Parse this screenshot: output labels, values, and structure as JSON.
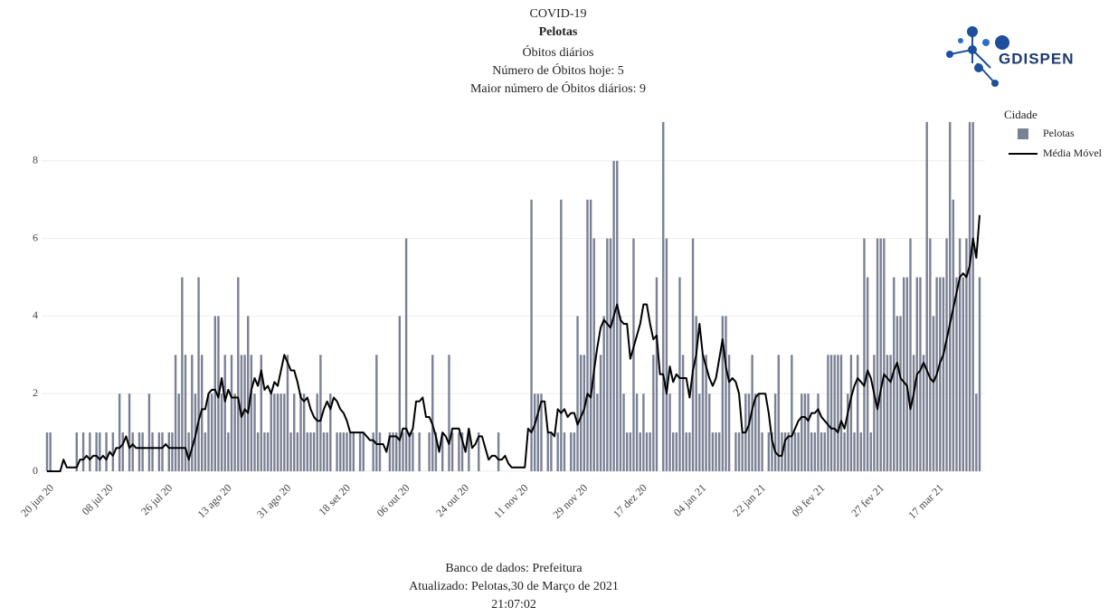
{
  "chart_data": {
    "type": "bar",
    "title": "COVID-19",
    "subtitle": "Pelotas",
    "annotations": [
      "Óbitos diários",
      "Número de Óbitos hoje: 5",
      "Maior número de Óbitos diários: 9"
    ],
    "footer": [
      "Banco de dados: Prefeitura",
      "Atualizado: Pelotas,30 de Março de 2021",
      "21:07:02"
    ],
    "legend_title": "Cidade",
    "legend_position": "top-right",
    "grid": true,
    "ylim": [
      0,
      9.3
    ],
    "yticks": [
      0,
      2,
      4,
      6,
      8
    ],
    "categories": [
      "20 jun 20",
      null,
      null,
      null,
      null,
      null,
      null,
      null,
      null,
      null,
      null,
      null,
      null,
      null,
      null,
      null,
      null,
      null,
      "08 jul 20",
      null,
      null,
      null,
      null,
      null,
      null,
      null,
      null,
      null,
      null,
      null,
      null,
      null,
      null,
      null,
      null,
      null,
      "26 jul 20",
      null,
      null,
      null,
      null,
      null,
      null,
      null,
      null,
      null,
      null,
      null,
      null,
      null,
      null,
      null,
      null,
      null,
      "13 ago 20",
      null,
      null,
      null,
      null,
      null,
      null,
      null,
      null,
      null,
      null,
      null,
      null,
      null,
      null,
      null,
      null,
      null,
      "31 ago 20",
      null,
      null,
      null,
      null,
      null,
      null,
      null,
      null,
      null,
      null,
      null,
      null,
      null,
      null,
      null,
      null,
      null,
      "18 set 20",
      null,
      null,
      null,
      null,
      null,
      null,
      null,
      null,
      null,
      null,
      null,
      null,
      null,
      null,
      null,
      null,
      null,
      "06 out 20",
      null,
      null,
      null,
      null,
      null,
      null,
      null,
      null,
      null,
      null,
      null,
      null,
      null,
      null,
      null,
      null,
      null,
      "24 out 20",
      null,
      null,
      null,
      null,
      null,
      null,
      null,
      null,
      null,
      null,
      null,
      null,
      null,
      null,
      null,
      null,
      null,
      "11 nov 20",
      null,
      null,
      null,
      null,
      null,
      null,
      null,
      null,
      null,
      null,
      null,
      null,
      null,
      null,
      null,
      null,
      null,
      "29 nov 20",
      null,
      null,
      null,
      null,
      null,
      null,
      null,
      null,
      null,
      null,
      null,
      null,
      null,
      null,
      null,
      null,
      null,
      "17 dez 20",
      null,
      null,
      null,
      null,
      null,
      null,
      null,
      null,
      null,
      null,
      null,
      null,
      null,
      null,
      null,
      null,
      null,
      "04 jan 21",
      null,
      null,
      null,
      null,
      null,
      null,
      null,
      null,
      null,
      null,
      null,
      null,
      null,
      null,
      null,
      null,
      null,
      "22 jan 21",
      null,
      null,
      null,
      null,
      null,
      null,
      null,
      null,
      null,
      null,
      null,
      null,
      null,
      null,
      null,
      null,
      null,
      "09 fev 21",
      null,
      null,
      null,
      null,
      null,
      null,
      null,
      null,
      null,
      null,
      null,
      null,
      null,
      null,
      null,
      null,
      null,
      "27 fev 21",
      null,
      null,
      null,
      null,
      null,
      null,
      null,
      null,
      null,
      null,
      null,
      null,
      null,
      null,
      null,
      null,
      null,
      "17 mar 21",
      null,
      null,
      null,
      null,
      null,
      null,
      null,
      null,
      null,
      null,
      null,
      null,
      null
    ],
    "series": [
      {
        "name": "Pelotas",
        "type": "bar",
        "color": "#7a8194",
        "values": [
          1,
          1,
          0,
          0,
          0,
          0,
          0,
          0,
          0,
          1,
          0,
          1,
          0,
          1,
          0,
          1,
          1,
          0,
          1,
          0,
          1,
          0,
          2,
          1,
          0,
          2,
          1,
          0,
          1,
          1,
          0,
          2,
          1,
          0,
          1,
          1,
          0,
          1,
          1,
          3,
          2,
          5,
          3,
          1,
          3,
          2,
          5,
          3,
          1,
          2,
          2,
          4,
          4,
          2,
          3,
          1,
          3,
          2,
          5,
          3,
          3,
          4,
          3,
          2,
          1,
          3,
          1,
          1,
          2,
          2,
          2,
          2,
          2,
          3,
          1,
          2,
          1,
          2,
          2,
          1,
          1,
          1,
          2,
          3,
          1,
          1,
          2,
          0,
          1,
          1,
          1,
          1,
          1,
          1,
          0,
          1,
          1,
          0,
          0,
          1,
          3,
          1,
          0,
          0,
          1,
          1,
          1,
          4,
          1,
          6,
          1,
          1,
          0,
          1,
          0,
          0,
          1,
          3,
          1,
          0,
          1,
          0,
          3,
          1,
          0,
          1,
          1,
          0,
          1,
          0,
          0,
          1,
          0,
          0,
          0,
          0,
          0,
          1,
          0,
          0,
          0,
          0,
          0,
          0,
          0,
          0,
          0,
          7,
          2,
          2,
          2,
          0,
          1,
          1,
          0,
          1,
          7,
          1,
          0,
          1,
          1,
          4,
          3,
          3,
          7,
          7,
          6,
          2,
          3,
          4,
          6,
          6,
          8,
          8,
          4,
          2,
          1,
          1,
          6,
          2,
          1,
          2,
          1,
          1,
          3,
          5,
          0,
          9,
          6,
          2,
          1,
          1,
          5,
          3,
          1,
          1,
          6,
          4,
          2,
          3,
          3,
          2,
          1,
          1,
          1,
          4,
          4,
          3,
          0,
          1,
          1,
          1,
          2,
          2,
          3,
          2,
          2,
          1,
          0,
          1,
          1,
          2,
          3,
          1,
          1,
          1,
          3,
          1,
          1,
          2,
          2,
          2,
          1,
          1,
          2,
          1,
          1,
          3,
          3,
          3,
          3,
          3,
          1,
          2,
          3,
          1,
          3,
          1,
          6,
          5,
          1,
          3,
          6,
          6,
          6,
          3,
          3,
          5,
          4,
          4,
          5,
          5,
          6,
          3,
          5,
          5,
          3,
          9,
          6,
          4,
          5,
          5,
          5,
          6,
          9,
          7,
          5,
          6,
          5,
          6,
          9,
          9,
          2,
          5
        ]
      },
      {
        "name": "Média Móvel",
        "type": "line",
        "color": "#000000",
        "values": [
          0,
          0,
          0,
          0,
          0,
          0.3,
          0.1,
          0.1,
          0.1,
          0.1,
          0.3,
          0.3,
          0.4,
          0.3,
          0.4,
          0.4,
          0.3,
          0.4,
          0.3,
          0.5,
          0.4,
          0.6,
          0.6,
          0.7,
          0.9,
          0.6,
          0.7,
          0.6,
          0.6,
          0.6,
          0.6,
          0.6,
          0.6,
          0.6,
          0.6,
          0.6,
          0.7,
          0.6,
          0.6,
          0.6,
          0.6,
          0.6,
          0.6,
          0.3,
          0.6,
          0.9,
          1.3,
          1.6,
          1.6,
          2.0,
          2.1,
          2.1,
          1.9,
          2.4,
          1.8,
          2.1,
          1.9,
          1.9,
          1.9,
          1.4,
          1.6,
          1.5,
          2.1,
          2.4,
          2.2,
          2.6,
          2.1,
          2.2,
          2.0,
          2.3,
          2.2,
          2.6,
          3.0,
          2.8,
          2.6,
          2.6,
          2.3,
          1.9,
          1.8,
          1.9,
          1.6,
          1.4,
          1.3,
          1.3,
          1.6,
          1.8,
          1.6,
          1.9,
          1.8,
          1.6,
          1.5,
          1.3,
          1.0,
          1.0,
          1.0,
          1.0,
          1.0,
          0.9,
          0.8,
          0.8,
          0.7,
          0.7,
          0.7,
          0.5,
          0.9,
          0.9,
          0.9,
          0.8,
          1.1,
          1.1,
          0.9,
          1.1,
          1.8,
          1.8,
          1.9,
          1.4,
          1.4,
          1.2,
          0.9,
          0.5,
          1.0,
          0.9,
          0.7,
          1.1,
          1.1,
          1.1,
          0.8,
          0.5,
          1.1,
          0.6,
          0.7,
          0.9,
          0.9,
          0.6,
          0.3,
          0.4,
          0.4,
          0.3,
          0.3,
          0.4,
          0.2,
          0.1,
          0.1,
          0.1,
          0.1,
          0.1,
          1.1,
          1.0,
          1.2,
          1.5,
          1.8,
          1.8,
          1.0,
          1.0,
          0.9,
          1.6,
          1.5,
          1.6,
          1.4,
          1.5,
          1.5,
          1.2,
          1.4,
          1.6,
          2.0,
          1.9,
          2.6,
          3.2,
          3.7,
          3.9,
          3.8,
          3.7,
          4.0,
          4.3,
          3.9,
          3.8,
          3.8,
          2.9,
          3.2,
          3.5,
          3.8,
          4.3,
          4.3,
          3.8,
          3.4,
          3.5,
          2.5,
          2.5,
          2.0,
          2.7,
          2.3,
          2.5,
          2.4,
          2.4,
          2.4,
          1.9,
          2.6,
          3.0,
          3.8,
          3.0,
          2.7,
          2.4,
          2.2,
          2.4,
          2.9,
          3.4,
          2.7,
          2.3,
          2.4,
          2.3,
          2.0,
          1.0,
          1.0,
          1.2,
          1.6,
          1.9,
          2.0,
          2.0,
          2.0,
          1.5,
          0.8,
          0.5,
          0.4,
          0.4,
          0.8,
          0.9,
          0.9,
          1.1,
          1.3,
          1.4,
          1.4,
          1.3,
          1.5,
          1.5,
          1.6,
          1.4,
          1.3,
          1.2,
          1.1,
          1.1,
          1.0,
          1.3,
          1.1,
          1.5,
          1.9,
          2.2,
          2.4,
          2.3,
          2.2,
          2.6,
          2.4,
          2.0,
          1.6,
          2.1,
          2.5,
          2.4,
          2.3,
          2.6,
          2.8,
          2.4,
          2.3,
          2.2,
          1.6,
          2.0,
          2.5,
          2.6,
          2.8,
          2.6,
          2.4,
          2.3,
          2.5,
          2.8,
          3.0,
          3.4,
          3.8,
          4.2,
          4.6,
          5.0,
          5.1,
          5.0,
          5.3,
          6.0,
          5.5,
          6.6
        ]
      }
    ]
  },
  "logo": {
    "text": "GDISPEN"
  }
}
